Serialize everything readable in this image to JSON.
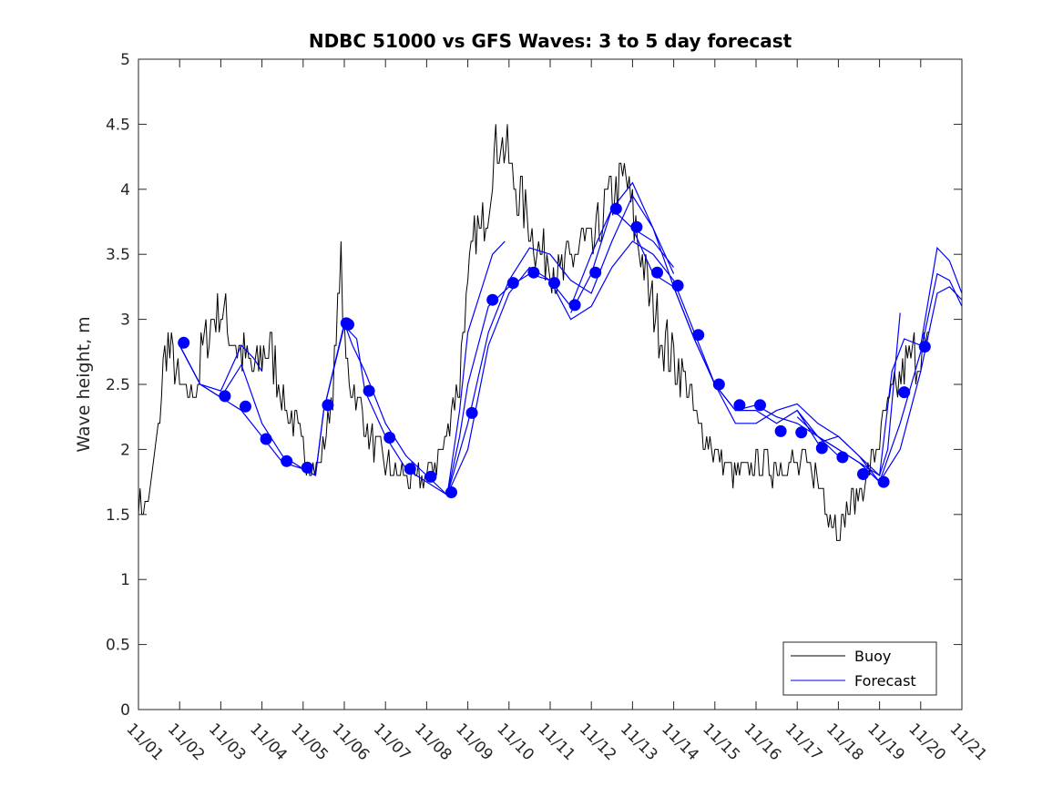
{
  "chart_data": {
    "type": "line",
    "title": "NDBC 51000 vs GFS Waves: 3 to 5 day forecast",
    "xlabel": "",
    "ylabel": "Wave height, m",
    "xlim": [
      0,
      20
    ],
    "ylim": [
      0,
      5
    ],
    "x_ticks": [
      {
        "value": 0,
        "label": "11/01"
      },
      {
        "value": 1,
        "label": "11/02"
      },
      {
        "value": 2,
        "label": "11/03"
      },
      {
        "value": 3,
        "label": "11/04"
      },
      {
        "value": 4,
        "label": "11/05"
      },
      {
        "value": 5,
        "label": "11/06"
      },
      {
        "value": 6,
        "label": "11/07"
      },
      {
        "value": 7,
        "label": "11/08"
      },
      {
        "value": 8,
        "label": "11/09"
      },
      {
        "value": 9,
        "label": "11/10"
      },
      {
        "value": 10,
        "label": "11/11"
      },
      {
        "value": 11,
        "label": "11/12"
      },
      {
        "value": 12,
        "label": "11/13"
      },
      {
        "value": 13,
        "label": "11/14"
      },
      {
        "value": 14,
        "label": "11/15"
      },
      {
        "value": 15,
        "label": "11/16"
      },
      {
        "value": 16,
        "label": "11/17"
      },
      {
        "value": 17,
        "label": "11/18"
      },
      {
        "value": 18,
        "label": "11/19"
      },
      {
        "value": 19,
        "label": "11/20"
      },
      {
        "value": 20,
        "label": "11/21"
      }
    ],
    "y_ticks": [
      {
        "value": 0,
        "label": "0"
      },
      {
        "value": 0.5,
        "label": "0.5"
      },
      {
        "value": 1,
        "label": "1"
      },
      {
        "value": 1.5,
        "label": "1.5"
      },
      {
        "value": 2,
        "label": "2"
      },
      {
        "value": 2.5,
        "label": "2.5"
      },
      {
        "value": 3,
        "label": "3"
      },
      {
        "value": 3.5,
        "label": "3.5"
      },
      {
        "value": 4,
        "label": "4"
      },
      {
        "value": 4.5,
        "label": "4.5"
      },
      {
        "value": 5,
        "label": "5"
      }
    ],
    "legend": {
      "position": "bottom-right",
      "entries": [
        {
          "label": "Buoy",
          "color": "#000000"
        },
        {
          "label": "Forecast",
          "color": "#0000ff"
        }
      ]
    },
    "colors": {
      "buoy": "#000000",
      "forecast": "#0000ff",
      "marker": "#0000ff"
    },
    "buoy": {
      "name": "Buoy",
      "x": [
        0,
        0.1,
        0.3,
        0.5,
        0.6,
        0.7,
        0.8,
        0.9,
        1.0,
        1.2,
        1.4,
        1.6,
        1.8,
        2.0,
        2.2,
        2.4,
        2.6,
        2.8,
        3.0,
        3.2,
        3.4,
        3.6,
        3.8,
        4.0,
        4.2,
        4.4,
        4.6,
        4.8,
        4.9,
        5.0,
        5.1,
        5.2,
        5.4,
        5.6,
        5.8,
        6.0,
        6.2,
        6.4,
        6.6,
        6.8,
        7.0,
        7.2,
        7.4,
        7.6,
        7.8,
        7.9,
        8.0,
        8.1,
        8.2,
        8.3,
        8.4,
        8.5,
        8.6,
        8.8,
        9.0,
        9.2,
        9.4,
        9.6,
        9.8,
        10.0,
        10.2,
        10.4,
        10.6,
        10.8,
        11.0,
        11.2,
        11.4,
        11.6,
        11.8,
        12.0,
        12.2,
        12.4,
        12.6,
        12.8,
        13.0,
        13.2,
        13.4,
        13.6,
        13.8,
        14.0,
        14.2,
        14.4,
        14.6,
        14.8,
        15.0,
        15.2,
        15.4,
        15.6,
        15.8,
        16.0,
        16.2,
        16.4,
        16.6,
        16.8,
        17.0,
        17.2,
        17.4,
        17.6,
        17.8,
        18.0,
        18.2,
        18.4,
        18.6,
        18.8,
        19.0,
        19.2
      ],
      "values": [
        1.6,
        1.5,
        1.7,
        2.2,
        2.6,
        2.8,
        2.7,
        2.6,
        2.5,
        2.4,
        2.5,
        2.8,
        3.0,
        3.1,
        2.9,
        2.8,
        2.7,
        2.6,
        2.7,
        2.8,
        2.5,
        2.3,
        2.2,
        2.0,
        1.9,
        1.85,
        2.2,
        2.7,
        3.6,
        2.8,
        2.6,
        2.5,
        2.3,
        2.1,
        2.0,
        1.9,
        1.85,
        1.8,
        1.75,
        1.75,
        1.8,
        1.9,
        2.0,
        2.3,
        2.5,
        3.0,
        3.2,
        3.5,
        3.7,
        3.6,
        3.8,
        3.9,
        4.2,
        4.4,
        4.2,
        4.0,
        3.8,
        3.6,
        3.5,
        3.5,
        3.3,
        3.4,
        3.5,
        3.6,
        3.5,
        3.7,
        3.9,
        4.0,
        4.1,
        3.8,
        3.5,
        3.2,
        3.0,
        2.8,
        2.7,
        2.6,
        2.4,
        2.2,
        2.1,
        1.95,
        1.9,
        1.85,
        1.8,
        1.85,
        1.9,
        1.9,
        1.85,
        1.9,
        1.9,
        1.85,
        1.9,
        1.85,
        1.7,
        1.5,
        1.4,
        1.5,
        1.6,
        1.7,
        1.9,
        2.1,
        2.3,
        2.5,
        2.6,
        2.7,
        2.8,
        2.75
      ]
    },
    "forecast_runs": [
      {
        "x": [
          1.0,
          1.5,
          2.0,
          2.5,
          2.8,
          3.0
        ],
        "values": [
          2.8,
          2.5,
          2.45,
          2.8,
          2.7,
          2.6
        ]
      },
      {
        "x": [
          1.0,
          1.5,
          2.0,
          2.5,
          3.0,
          3.5,
          4.0,
          4.3
        ],
        "values": [
          2.8,
          2.5,
          2.4,
          2.65,
          2.2,
          1.95,
          1.85,
          1.8
        ]
      },
      {
        "x": [
          1.0,
          1.5,
          2.0,
          2.5,
          3.0,
          3.5,
          4.0,
          4.3,
          4.5,
          5.0,
          5.2,
          5.5,
          6.0,
          6.5,
          7.0,
          7.5
        ],
        "values": [
          2.8,
          2.5,
          2.4,
          2.3,
          2.1,
          1.9,
          1.85,
          1.8,
          2.3,
          2.97,
          2.8,
          2.6,
          2.2,
          1.95,
          1.8,
          1.65
        ]
      },
      {
        "x": [
          4.3,
          4.5,
          5.0,
          5.3,
          5.5,
          6.0,
          6.5,
          7.0,
          7.5,
          7.8,
          8.0,
          8.3,
          8.6,
          8.9
        ],
        "values": [
          1.8,
          2.3,
          2.95,
          2.85,
          2.45,
          2.1,
          1.85,
          1.75,
          1.65,
          2.3,
          2.9,
          3.2,
          3.5,
          3.6
        ]
      },
      {
        "x": [
          7.5,
          7.8,
          8.0,
          8.5,
          9.0,
          9.5,
          10.0,
          10.5,
          11.0,
          11.5,
          12.0,
          12.5,
          13.0
        ],
        "values": [
          1.65,
          2.1,
          2.5,
          3.1,
          3.25,
          3.35,
          3.3,
          3.1,
          3.5,
          3.85,
          3.7,
          3.6,
          3.4
        ]
      },
      {
        "x": [
          7.5,
          8.0,
          8.5,
          9.0,
          9.5,
          10.0,
          10.5,
          11.0,
          11.5,
          12.0,
          12.5,
          13.0
        ],
        "values": [
          1.65,
          2.2,
          2.9,
          3.3,
          3.55,
          3.5,
          3.3,
          3.2,
          3.6,
          3.95,
          3.7,
          3.35
        ]
      },
      {
        "x": [
          7.5,
          8.0,
          8.5,
          9.0,
          9.5,
          10.0,
          10.5,
          11.0,
          11.5,
          12.0,
          12.5,
          13.0,
          13.5,
          14.0
        ],
        "values": [
          1.65,
          2.0,
          2.8,
          3.2,
          3.4,
          3.3,
          3.0,
          3.1,
          3.4,
          3.6,
          3.5,
          3.3,
          2.9,
          2.5
        ]
      },
      {
        "x": [
          10.5,
          11.0,
          11.5,
          12.0,
          12.5,
          13.0,
          13.5,
          14.0,
          14.5,
          15.0,
          15.5,
          16.0,
          16.5,
          17.0
        ],
        "values": [
          3.05,
          3.35,
          3.85,
          4.05,
          3.7,
          3.25,
          2.85,
          2.5,
          2.3,
          2.3,
          2.2,
          2.3,
          2.1,
          1.95
        ]
      },
      {
        "x": [
          12.0,
          12.5,
          13.0,
          13.5,
          14.0,
          14.5,
          15.0,
          15.5,
          16.0,
          16.5,
          17.0,
          17.5,
          18.0,
          18.2,
          18.5
        ],
        "values": [
          3.7,
          3.35,
          3.25,
          2.85,
          2.5,
          2.2,
          2.2,
          2.3,
          2.35,
          2.2,
          2.1,
          1.95,
          1.8,
          2.0,
          3.05
        ]
      },
      {
        "x": [
          14.0,
          14.5,
          15.0,
          15.5,
          16.0,
          16.5,
          17.0,
          17.5,
          18.0,
          18.3,
          18.6,
          19.0,
          19.4,
          19.7,
          20.0
        ],
        "values": [
          2.5,
          2.3,
          2.34,
          2.25,
          2.2,
          2.1,
          2.0,
          1.9,
          1.8,
          2.6,
          2.85,
          2.8,
          3.55,
          3.45,
          3.2
        ]
      },
      {
        "x": [
          16.0,
          16.5,
          17.0,
          17.5,
          18.0,
          18.5,
          19.0,
          19.4,
          19.7,
          20.0
        ],
        "values": [
          2.3,
          2.05,
          2.1,
          1.95,
          1.75,
          2.2,
          2.75,
          3.35,
          3.3,
          3.1
        ]
      },
      {
        "x": [
          16.0,
          16.5,
          17.0,
          17.5,
          18.0,
          18.5,
          19.0,
          19.4,
          19.7,
          20.0
        ],
        "values": [
          2.25,
          2.1,
          2.0,
          1.9,
          1.75,
          2.0,
          2.6,
          3.2,
          3.25,
          3.15
        ]
      }
    ],
    "forecast_markers": {
      "x": [
        1.1,
        2.1,
        2.6,
        3.1,
        3.6,
        4.1,
        4.6,
        5.05,
        5.1,
        5.6,
        6.1,
        6.6,
        7.1,
        7.6,
        8.1,
        8.6,
        9.1,
        9.6,
        10.1,
        10.6,
        11.1,
        11.6,
        12.1,
        12.6,
        13.1,
        13.6,
        14.1,
        14.6,
        15.1,
        15.6,
        16.1,
        16.6,
        17.1,
        17.6,
        18.1,
        18.6,
        19.1
      ],
      "values": [
        2.82,
        2.41,
        2.33,
        2.08,
        1.91,
        1.86,
        2.34,
        2.97,
        2.96,
        2.45,
        2.09,
        1.85,
        1.79,
        1.67,
        2.28,
        3.15,
        3.28,
        3.36,
        3.28,
        3.11,
        3.36,
        3.85,
        3.71,
        3.36,
        3.26,
        2.88,
        2.5,
        2.34,
        2.34,
        2.14,
        2.13,
        2.01,
        1.94,
        1.81,
        1.75,
        2.44,
        2.79
      ]
    }
  }
}
